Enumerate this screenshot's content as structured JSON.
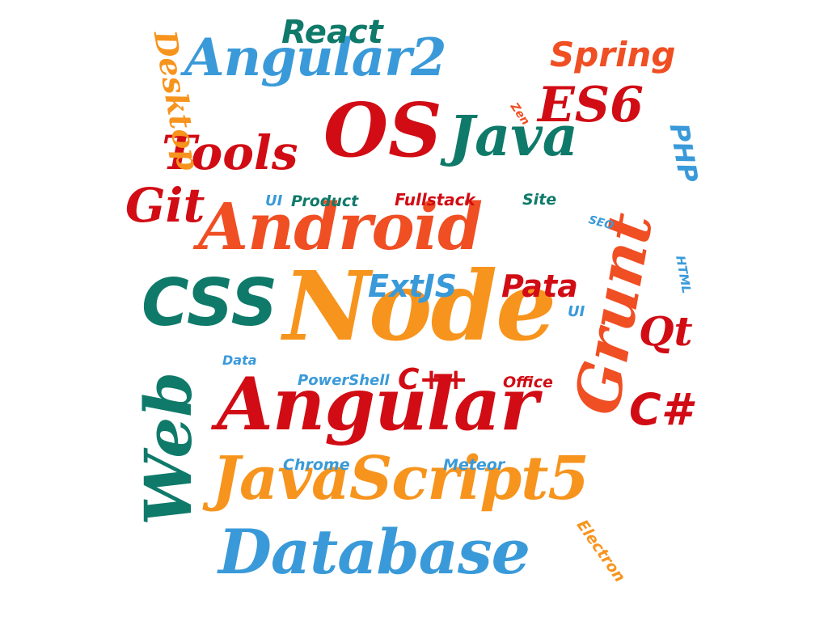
{
  "colors": {
    "orange": "#f7941d",
    "blue": "#3a9ad9",
    "teal": "#0f7a6a",
    "red": "#d10c14",
    "redorange": "#f04e23"
  },
  "words": {
    "node": {
      "text": "Node",
      "color": "#f7941d"
    },
    "android": {
      "text": "Android",
      "color": "#f04e23"
    },
    "angular": {
      "text": "Angular",
      "color": "#d10c14"
    },
    "javascript5": {
      "text": "JavaScript5",
      "color": "#f7941d"
    },
    "database": {
      "text": "Database",
      "color": "#3a9ad9"
    },
    "angular2": {
      "text": "Angular2",
      "color": "#3a9ad9"
    },
    "os": {
      "text": "OS",
      "color": "#d10c14"
    },
    "java": {
      "text": "Java",
      "color": "#0f7a6a"
    },
    "tools": {
      "text": "Tools",
      "color": "#d10c14"
    },
    "css": {
      "text": "CSS",
      "color": "#0f7a6a"
    },
    "web": {
      "text": "Web",
      "color": "#0f7a6a"
    },
    "grunt": {
      "text": "Grunt",
      "color": "#f04e23"
    },
    "react": {
      "text": "React",
      "color": "#0f7a6a"
    },
    "spring": {
      "text": "Spring",
      "color": "#f04e23"
    },
    "es6": {
      "text": "ES6",
      "color": "#d10c14"
    },
    "git": {
      "text": "Git",
      "color": "#d10c14"
    },
    "desktop": {
      "text": "Desktop",
      "color": "#f7941d"
    },
    "php": {
      "text": "PHP",
      "color": "#3a9ad9"
    },
    "zen": {
      "text": "Zen",
      "color": "#f04e23"
    },
    "seo": {
      "text": "SEO",
      "color": "#3a9ad9"
    },
    "html": {
      "text": "HTML",
      "color": "#3a9ad9"
    },
    "ui1": {
      "text": "UI",
      "color": "#3a9ad9"
    },
    "product": {
      "text": "Product",
      "color": "#0f7a6a"
    },
    "fullstack": {
      "text": "Fullstack",
      "color": "#d10c14"
    },
    "site": {
      "text": "Site",
      "color": "#0f7a6a"
    },
    "extjs": {
      "text": "ExtJS",
      "color": "#3a9ad9"
    },
    "pata": {
      "text": "Pata",
      "color": "#d10c14"
    },
    "ui2": {
      "text": "UI",
      "color": "#3a9ad9"
    },
    "qt": {
      "text": "Qt",
      "color": "#d10c14"
    },
    "data": {
      "text": "Data",
      "color": "#3a9ad9"
    },
    "powershell": {
      "text": "PowerShell",
      "color": "#3a9ad9"
    },
    "cpp": {
      "text": "C++",
      "color": "#d10c14"
    },
    "office": {
      "text": "Office",
      "color": "#d10c14"
    },
    "csharp": {
      "text": "C#",
      "color": "#d10c14"
    },
    "chrome": {
      "text": "Chrome",
      "color": "#3a9ad9"
    },
    "meteor": {
      "text": "Meteor",
      "color": "#3a9ad9"
    },
    "electron": {
      "text": "Electron",
      "color": "#f7941d"
    }
  }
}
